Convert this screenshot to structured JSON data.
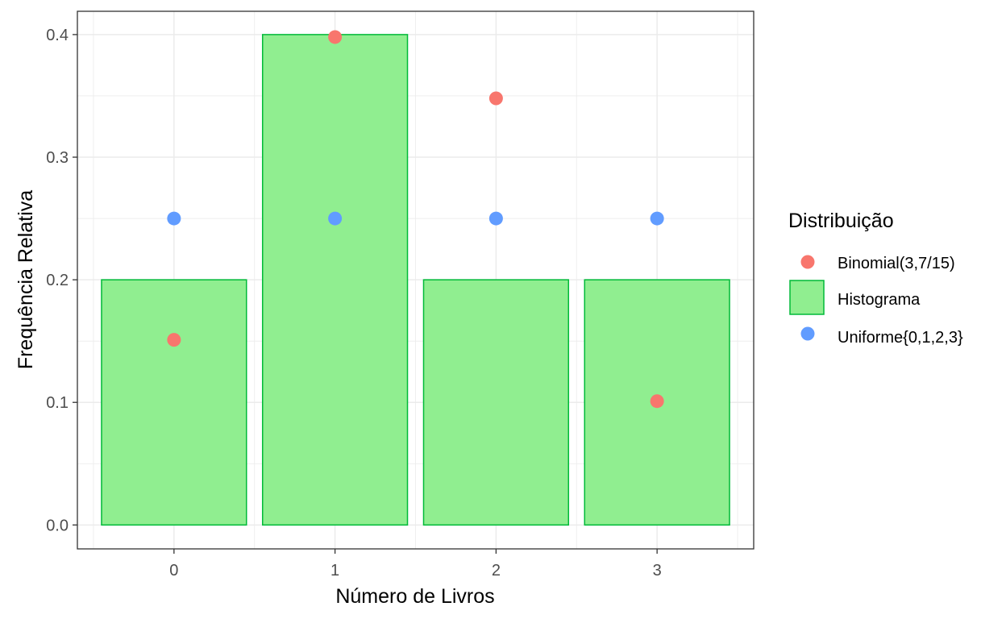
{
  "chart_data": {
    "type": "bar",
    "title": "",
    "xlabel": "Número de Livros",
    "ylabel": "Frequência Relativa",
    "categories": [
      "0",
      "1",
      "2",
      "3"
    ],
    "ylim": [
      -0.0195,
      0.419
    ],
    "yticks": [
      0.0,
      0.1,
      0.2,
      0.3,
      0.4
    ],
    "ytick_labels": [
      "0.0",
      "0.1",
      "0.2",
      "0.3",
      "0.4"
    ],
    "grid": true,
    "legend": {
      "title": "Distribuição",
      "position": "right",
      "entries": [
        "Binomial(3,7/15)",
        "Histograma",
        "Uniforme{0,1,2,3}"
      ]
    },
    "series": [
      {
        "name": "Histograma",
        "kind": "bar",
        "values": [
          0.2,
          0.4,
          0.2,
          0.2
        ],
        "fill": "#90EE90",
        "stroke": "#00BA38"
      },
      {
        "name": "Binomial(3,7/15)",
        "kind": "point",
        "values": [
          0.151,
          0.398,
          0.348,
          0.101
        ],
        "color": "#F8766D"
      },
      {
        "name": "Uniforme{0,1,2,3}",
        "kind": "point",
        "values": [
          0.25,
          0.25,
          0.25,
          0.25
        ],
        "color": "#619CFF"
      }
    ]
  }
}
